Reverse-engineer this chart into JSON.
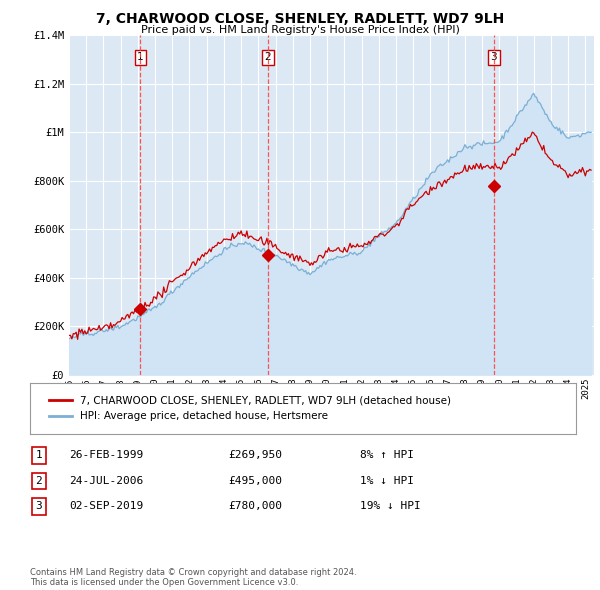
{
  "title": "7, CHARWOOD CLOSE, SHENLEY, RADLETT, WD7 9LH",
  "subtitle": "Price paid vs. HM Land Registry's House Price Index (HPI)",
  "background_color": "#ffffff",
  "plot_bg_color": "#dce9f5",
  "grid_color": "#ffffff",
  "ylim": [
    0,
    1400000
  ],
  "yticks": [
    0,
    200000,
    400000,
    600000,
    800000,
    1000000,
    1200000,
    1400000
  ],
  "ytick_labels": [
    "£0",
    "£200K",
    "£400K",
    "£600K",
    "£800K",
    "£1M",
    "£1.2M",
    "£1.4M"
  ],
  "sale_dates_num": [
    1999.15,
    2006.56,
    2019.67
  ],
  "sale_prices": [
    269950,
    495000,
    780000
  ],
  "sale_labels": [
    "1",
    "2",
    "3"
  ],
  "vline_color": "#ff4444",
  "sale_marker_color": "#cc0000",
  "red_line_color": "#cc0000",
  "blue_line_color": "#7bafd4",
  "blue_fill_color": "#d0e4f5",
  "legend_label_red": "7, CHARWOOD CLOSE, SHENLEY, RADLETT, WD7 9LH (detached house)",
  "legend_label_blue": "HPI: Average price, detached house, Hertsmere",
  "table_rows": [
    [
      "1",
      "26-FEB-1999",
      "£269,950",
      "8% ↑ HPI"
    ],
    [
      "2",
      "24-JUL-2006",
      "£495,000",
      "1% ↓ HPI"
    ],
    [
      "3",
      "02-SEP-2019",
      "£780,000",
      "19% ↓ HPI"
    ]
  ],
  "footnote": "Contains HM Land Registry data © Crown copyright and database right 2024.\nThis data is licensed under the Open Government Licence v3.0.",
  "xmin": 1995.0,
  "xmax": 2025.5
}
